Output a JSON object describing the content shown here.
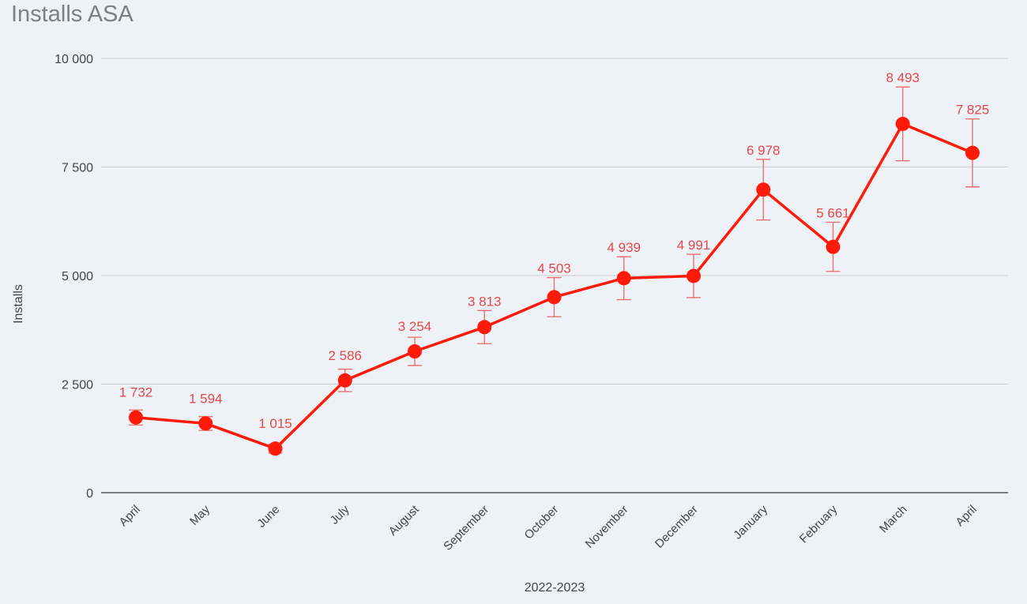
{
  "chart_data": {
    "type": "line",
    "title": "Installs ASA",
    "xlabel": "2022-2023",
    "ylabel": "Installs",
    "categories": [
      "April",
      "May",
      "June",
      "July",
      "August",
      "September",
      "October",
      "November",
      "December",
      "January",
      "February",
      "March",
      "April"
    ],
    "values": [
      1732,
      1594,
      1015,
      2586,
      3254,
      3813,
      4503,
      4939,
      4991,
      6978,
      5661,
      8493,
      7825
    ],
    "value_labels": [
      "1 732",
      "1 594",
      "1 015",
      "2 586",
      "3 254",
      "3 813",
      "4 503",
      "4 939",
      "4 991",
      "6 978",
      "5 661",
      "8 493",
      "7 825"
    ],
    "error_fraction": 0.1,
    "ylim": [
      0,
      10000
    ],
    "yticks": [
      0,
      2500,
      5000,
      7500,
      10000
    ],
    "ytick_labels": [
      "0",
      "2 500",
      "5 000",
      "7 500",
      "10 000"
    ],
    "grid": true,
    "colors": {
      "line": "#ff1a0a",
      "label": "#e5484b",
      "error": "#e86a6a",
      "grid": "#c9ccd0",
      "axis": "#555555",
      "text": "#444444"
    }
  }
}
